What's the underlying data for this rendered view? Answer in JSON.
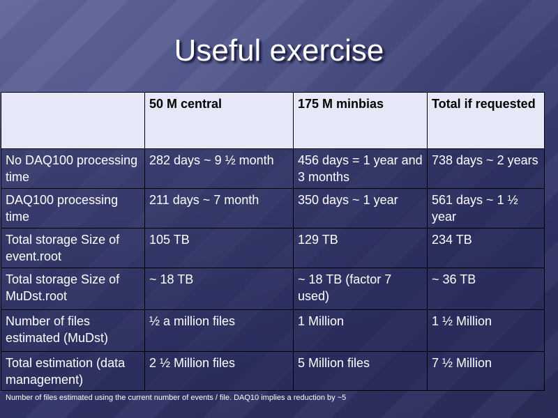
{
  "slide": {
    "title": "Useful exercise",
    "footnote": "Number of files estimated using the current number of events / file. DAQ10 implies a reduction by ~5"
  },
  "table": {
    "headers": [
      "",
      "50 M central",
      "175 M minbias",
      "Total if requested"
    ],
    "rows": [
      [
        "No DAQ100 processing time",
        "282 days ~ 9 ½ month",
        "456 days = 1 year and 3 months",
        "738 days ~ 2 years"
      ],
      [
        "DAQ100 processing time",
        "211 days ~ 7 month",
        "350 days ~ 1 year",
        "561 days ~ 1 ½ year"
      ],
      [
        "Total storage Size of event.root",
        "105 TB",
        "129 TB",
        "234 TB"
      ],
      [
        "Total storage Size of MuDst.root",
        "~ 18 TB",
        "~ 18 TB (factor 7 used)",
        "~ 36 TB"
      ],
      [
        "Number of files estimated (MuDst)",
        "½ a million files",
        "1 Million",
        "1 ½ Million"
      ],
      [
        "Total estimation (data management)",
        "2 ½ Million files",
        "5 Million files",
        "7 ½ Million"
      ]
    ]
  }
}
